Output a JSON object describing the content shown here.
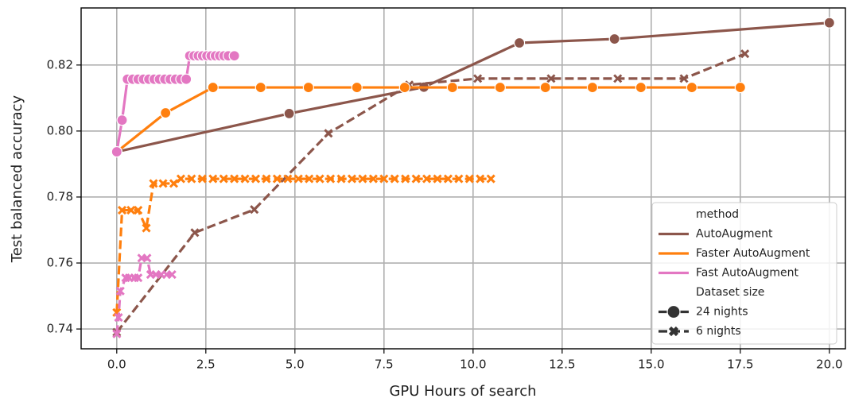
{
  "chart_data": {
    "type": "line",
    "xlabel": "GPU Hours of search",
    "ylabel": "Test balanced accuracy",
    "xlim": [
      -1.0,
      20.45
    ],
    "ylim": [
      0.734,
      0.8373
    ],
    "xticks": [
      {
        "value": 0,
        "label": "0.0"
      },
      {
        "value": 2.5,
        "label": "2.5"
      },
      {
        "value": 5,
        "label": "5.0"
      },
      {
        "value": 7.5,
        "label": "7.5"
      },
      {
        "value": 10,
        "label": "10.0"
      },
      {
        "value": 12.5,
        "label": "12.5"
      },
      {
        "value": 15,
        "label": "15.0"
      },
      {
        "value": 17.5,
        "label": "17.5"
      },
      {
        "value": 20,
        "label": "20.0"
      }
    ],
    "yticks": [
      0.74,
      0.76,
      0.78,
      {
        "value": 0.8,
        "label": "0.80"
      },
      0.82
    ],
    "grid": true,
    "legend": {
      "title": "method",
      "entries": [
        {
          "name": "AutoAugment",
          "color": "#8c564b"
        },
        {
          "name": "Faster AutoAugment",
          "color": "#ff7f0e"
        },
        {
          "name": "Fast AutoAugment",
          "color": "#e377c2"
        }
      ],
      "title2": "Dataset size",
      "entries2": [
        {
          "name": "24 nights",
          "marker": "circle",
          "dashed": false
        },
        {
          "name": "6 nights",
          "marker": "x",
          "dashed": true
        }
      ]
    },
    "series": [
      {
        "color": "#8c564b",
        "marker": "circle",
        "dashed": false,
        "x": [
          0,
          4.84,
          8.62,
          11.3,
          13.97,
          20.0
        ],
        "values": [
          0.7937,
          0.8053,
          0.8133,
          0.8267,
          0.8279,
          0.8328
        ]
      },
      {
        "color": "#8c564b",
        "marker": "x",
        "dashed": true,
        "x": [
          0,
          2.19,
          3.86,
          5.94,
          8.21,
          10.13,
          12.19,
          14.06,
          15.92,
          17.63
        ],
        "values": [
          0.739,
          0.7692,
          0.7762,
          0.7993,
          0.814,
          0.8159,
          0.8159,
          0.8159,
          0.8159,
          0.8234
        ]
      },
      {
        "color": "#ff7f0e",
        "marker": "circle",
        "dashed": false,
        "x": [
          0,
          1.37,
          2.7,
          4.04,
          5.38,
          6.74,
          8.08,
          9.42,
          10.76,
          12.03,
          13.35,
          14.71,
          16.14,
          17.5
        ],
        "values": [
          0.7937,
          0.8055,
          0.8132,
          0.8132,
          0.8132,
          0.8132,
          0.8132,
          0.8132,
          0.8132,
          0.8132,
          0.8132,
          0.8132,
          0.8132,
          0.8132
        ]
      },
      {
        "color": "#ff7f0e",
        "marker": "x",
        "dashed": true,
        "x": [
          0,
          0.15,
          0.4,
          0.6,
          0.83,
          1.03,
          1.3,
          1.6,
          1.8,
          2.1,
          2.4,
          2.7,
          3.0,
          3.3,
          3.6,
          3.9,
          4.2,
          4.5,
          4.8,
          5.1,
          5.4,
          5.7,
          6.0,
          6.3,
          6.6,
          6.9,
          7.2,
          7.5,
          7.8,
          8.1,
          8.4,
          8.7,
          9.0,
          9.3,
          9.6,
          9.9,
          10.2,
          10.5
        ],
        "values": [
          0.745,
          0.776,
          0.776,
          0.776,
          0.7706,
          0.7841,
          0.7841,
          0.7841,
          0.7855,
          0.7855,
          0.7855,
          0.7855,
          0.7855,
          0.7855,
          0.7855,
          0.7855,
          0.7855,
          0.7855,
          0.7855,
          0.7855,
          0.7855,
          0.7855,
          0.7855,
          0.7855,
          0.7855,
          0.7855,
          0.7855,
          0.7855,
          0.7855,
          0.7855,
          0.7855,
          0.7855,
          0.7855,
          0.7855,
          0.7855,
          0.7855,
          0.7855,
          0.7855
        ]
      },
      {
        "color": "#e377c2",
        "marker": "circle",
        "dashed": false,
        "x": [
          0,
          0.15,
          0.3,
          0.45,
          0.6,
          0.75,
          0.9,
          1.05,
          1.2,
          1.35,
          1.5,
          1.65,
          1.8,
          1.95,
          2.05,
          2.17,
          2.29,
          2.41,
          2.53,
          2.65,
          2.77,
          2.89,
          3.01,
          3.13,
          3.3
        ],
        "values": [
          0.7937,
          0.8033,
          0.8157,
          0.8157,
          0.8157,
          0.8157,
          0.8157,
          0.8157,
          0.8157,
          0.8157,
          0.8157,
          0.8157,
          0.8157,
          0.8157,
          0.8228,
          0.8228,
          0.8228,
          0.8228,
          0.8228,
          0.8228,
          0.8228,
          0.8228,
          0.8228,
          0.8228,
          0.8228
        ]
      },
      {
        "color": "#e377c2",
        "marker": "x",
        "dashed": true,
        "x": [
          0,
          0.05,
          0.1,
          0.25,
          0.35,
          0.5,
          0.6,
          0.7,
          0.85,
          0.95,
          1.1,
          1.25,
          1.4,
          1.55
        ],
        "values": [
          0.7385,
          0.7435,
          0.7515,
          0.7555,
          0.7555,
          0.7555,
          0.7555,
          0.7615,
          0.7615,
          0.7565,
          0.7565,
          0.7565,
          0.7565,
          0.7565
        ]
      }
    ]
  }
}
